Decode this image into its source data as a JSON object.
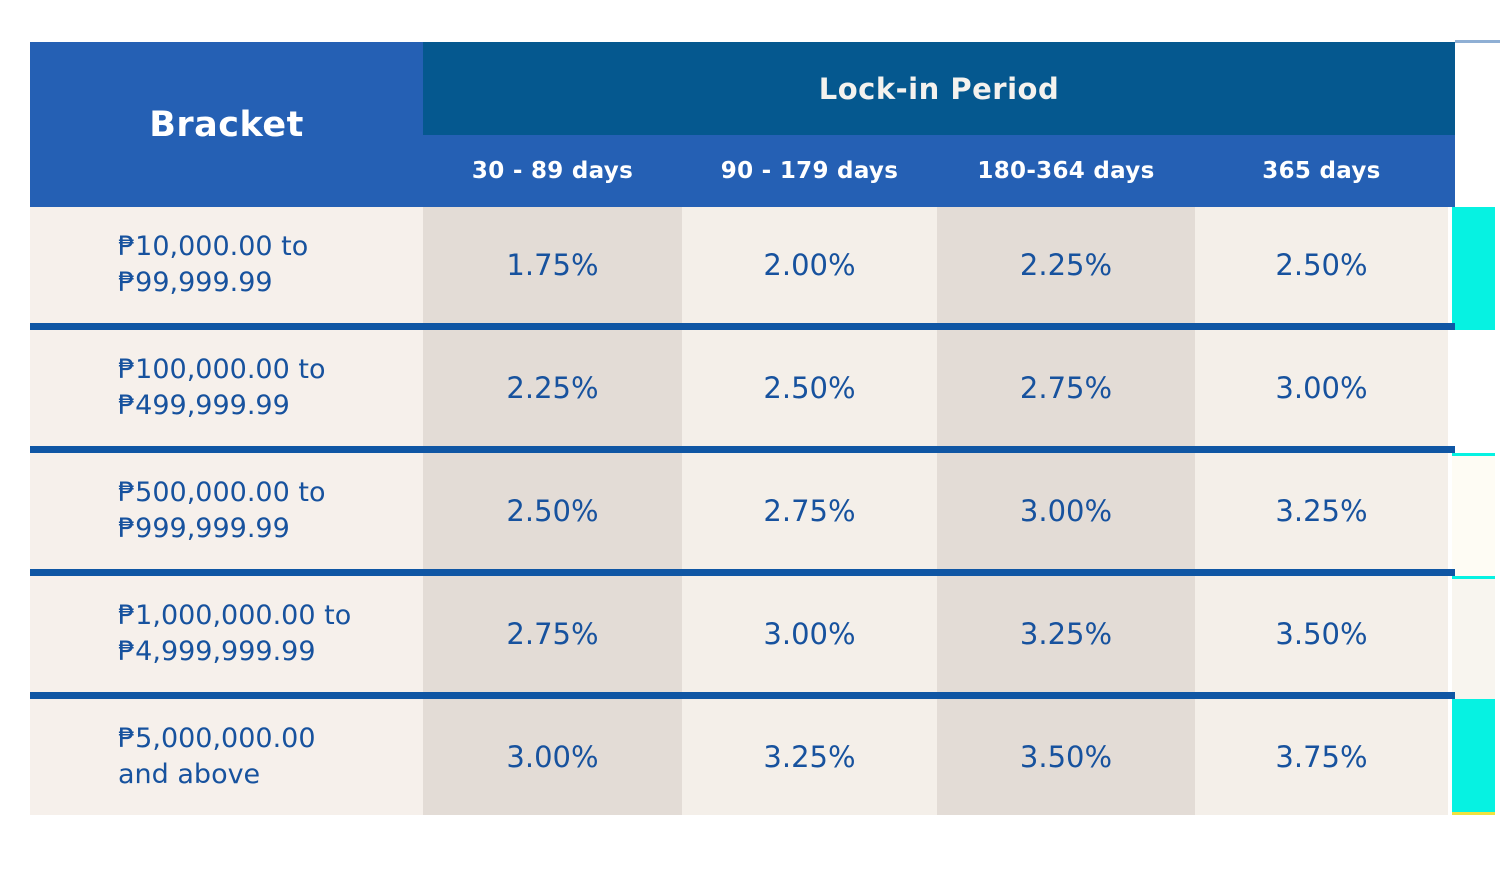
{
  "colors": {
    "royal_blue": "#2560b4",
    "dark_blue": "#05588f",
    "divider_blue": "#0f56a4",
    "text_blue": "#17529e",
    "cream": "#f6f0eb",
    "taupe": "#e3dcd6",
    "cyan_accent": "#06f2e2"
  },
  "table": {
    "bracket_header": "Bracket",
    "lockin_header": "Lock-in Period",
    "period_columns": [
      "30 - 89 days",
      "90 - 179 days",
      "180-364 days",
      "365 days"
    ],
    "rows": [
      {
        "bracket_line1": "₱10,000.00 to",
        "bracket_line2": "₱99,999.99",
        "values": [
          "1.75%",
          "2.00%",
          "2.25%",
          "2.50%"
        ]
      },
      {
        "bracket_line1": "₱100,000.00 to",
        "bracket_line2": "₱499,999.99",
        "values": [
          "2.25%",
          "2.50%",
          "2.75%",
          "3.00%"
        ]
      },
      {
        "bracket_line1": "₱500,000.00 to",
        "bracket_line2": "₱999,999.99",
        "values": [
          "2.50%",
          "2.75%",
          "3.00%",
          "3.25%"
        ]
      },
      {
        "bracket_line1": "₱1,000,000.00 to",
        "bracket_line2": "₱4,999,999.99",
        "values": [
          "2.75%",
          "3.00%",
          "3.25%",
          "3.50%"
        ]
      },
      {
        "bracket_line1": "₱5,000,000.00",
        "bracket_line2": "and above",
        "values": [
          "3.00%",
          "3.25%",
          "3.50%",
          "3.75%"
        ]
      }
    ]
  },
  "chart_data": {
    "type": "table",
    "title": "Lock-in Period",
    "columns": [
      "Bracket",
      "30 - 89 days",
      "90 - 179 days",
      "180-364 days",
      "365 days"
    ],
    "rows": [
      [
        "₱10,000.00 to ₱99,999.99",
        "1.75%",
        "2.00%",
        "2.25%",
        "2.50%"
      ],
      [
        "₱100,000.00 to ₱499,999.99",
        "2.25%",
        "2.50%",
        "2.75%",
        "3.00%"
      ],
      [
        "₱500,000.00 to ₱999,999.99",
        "2.50%",
        "2.75%",
        "3.00%",
        "3.25%"
      ],
      [
        "₱1,000,000.00 to ₱4,999,999.99",
        "2.75%",
        "3.00%",
        "3.25%",
        "3.50%"
      ],
      [
        "₱5,000,000.00 and above",
        "3.00%",
        "3.25%",
        "3.50%",
        "3.75%"
      ]
    ]
  }
}
